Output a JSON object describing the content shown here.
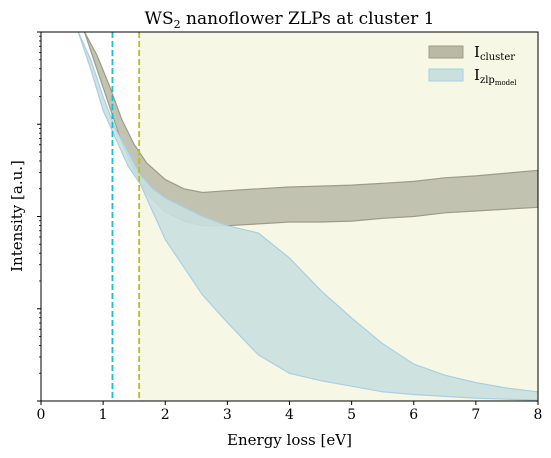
{
  "chart_data": {
    "type": "area",
    "title": "WS",
    "title_sub": "2",
    "title_rest": " nanoflower  ZLPs at cluster 1",
    "xlabel": "Energy loss [eV]",
    "ylabel": "Intensity [a.u.]",
    "xlim": [
      0,
      8
    ],
    "ylim_log10": [
      0,
      4
    ],
    "y_scale": "log",
    "grid": false,
    "legend_position": "top-right",
    "x_ticks": [
      "0",
      "1",
      "2",
      "3",
      "4",
      "5",
      "6",
      "7",
      "8"
    ],
    "vlines": [
      {
        "x": 1.15,
        "color": "#17becf",
        "style": "dashed"
      },
      {
        "x": 1.58,
        "color": "#bcbd22",
        "style": "dashed"
      }
    ],
    "shaded_region": {
      "x_from": 1.58,
      "x_to": 8,
      "color": "#f7f7e6"
    },
    "series": [
      {
        "name": "I",
        "name_sub": "cluster",
        "color": "#b9b9a6",
        "edge_color": "#9c9c87",
        "x": [
          0.7,
          0.9,
          1.1,
          1.3,
          1.5,
          1.7,
          2.0,
          2.3,
          2.6,
          3.0,
          3.5,
          4.0,
          4.5,
          5.0,
          5.5,
          6.0,
          6.5,
          7.0,
          7.5,
          8.0
        ],
        "lower_log10": [
          4.0,
          3.6,
          3.2,
          2.8,
          2.5,
          2.25,
          2.05,
          1.95,
          1.9,
          1.9,
          1.92,
          1.94,
          1.94,
          1.95,
          1.98,
          2.0,
          2.04,
          2.06,
          2.08,
          2.1
        ],
        "upper_log10": [
          4.0,
          3.75,
          3.42,
          3.05,
          2.78,
          2.58,
          2.4,
          2.3,
          2.26,
          2.28,
          2.3,
          2.32,
          2.33,
          2.34,
          2.36,
          2.38,
          2.42,
          2.44,
          2.47,
          2.5
        ]
      },
      {
        "name": "I",
        "name_sub": "zlp",
        "name_subsub": "model",
        "color": "#c9e0df",
        "edge_color": "#a9cfe3",
        "x": [
          0.6,
          0.8,
          1.0,
          1.2,
          1.4,
          1.6,
          1.8,
          2.0,
          2.3,
          2.6,
          3.0,
          3.5,
          4.0,
          4.5,
          5.0,
          5.5,
          6.0,
          6.5,
          7.0,
          7.5,
          8.0
        ],
        "lower_log10": [
          4.0,
          3.6,
          3.15,
          2.85,
          2.55,
          2.35,
          2.05,
          1.75,
          1.45,
          1.15,
          0.85,
          0.5,
          0.3,
          0.22,
          0.16,
          0.1,
          0.07,
          0.05,
          0.03,
          0.02,
          0.01
        ],
        "upper_log10": [
          4.0,
          3.7,
          3.3,
          2.95,
          2.7,
          2.45,
          2.3,
          2.2,
          2.1,
          2.0,
          1.9,
          1.82,
          1.55,
          1.2,
          0.9,
          0.62,
          0.4,
          0.28,
          0.2,
          0.14,
          0.1
        ]
      }
    ]
  }
}
